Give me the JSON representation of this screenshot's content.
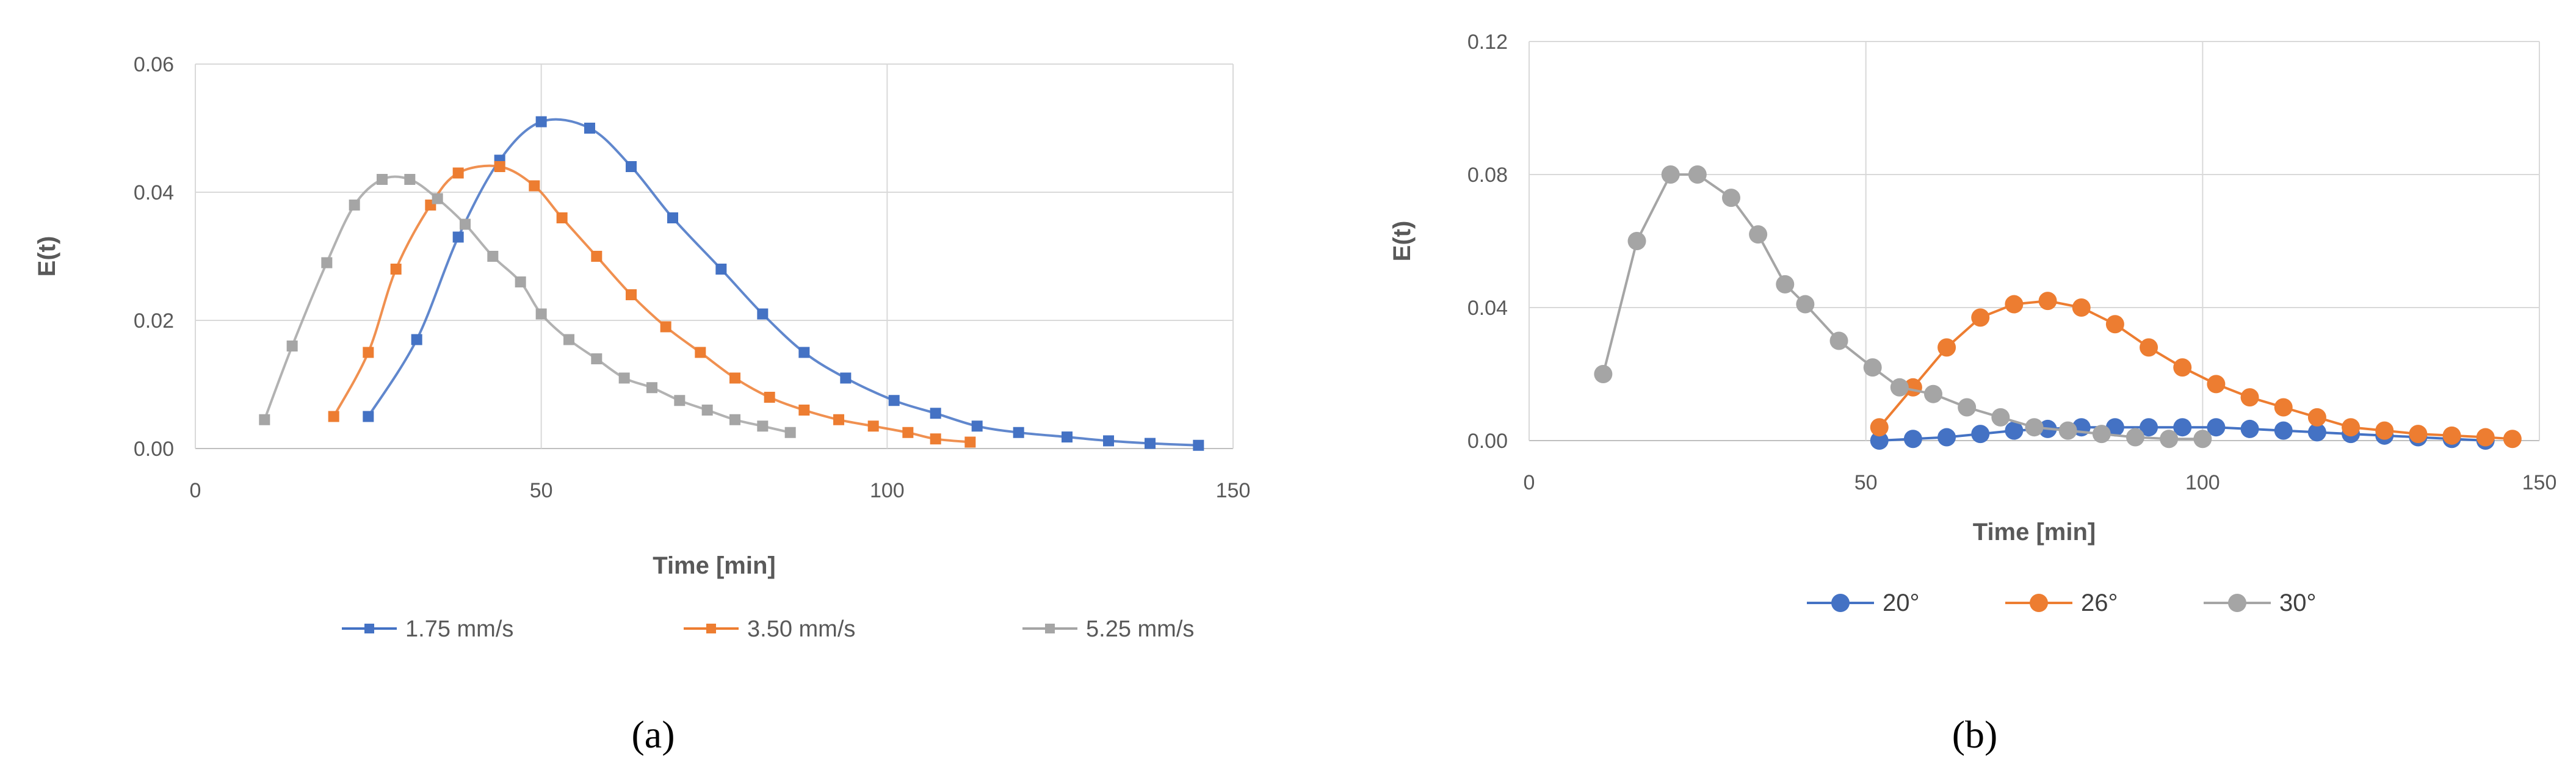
{
  "chart_data": [
    {
      "type": "line",
      "caption": "(a)",
      "xlabel": "Time [min]",
      "ylabel": "E(t)",
      "xlim": [
        0,
        150
      ],
      "ylim": [
        0,
        0.06
      ],
      "xticks": [
        "0",
        "50",
        "100",
        "150"
      ],
      "yticks": [
        "0.00",
        "0.02",
        "0.04",
        "0.06"
      ],
      "grid": true,
      "smooth": true,
      "legend_position": "bottom",
      "series": [
        {
          "name": "1.75 mm/s",
          "color": "#4472c4",
          "x": [
            25,
            32,
            38,
            44,
            50,
            57,
            63,
            69,
            76,
            82,
            88,
            94,
            101,
            107,
            113,
            119,
            126,
            132,
            138,
            145
          ],
          "y": [
            0.005,
            0.017,
            0.033,
            0.045,
            0.051,
            0.05,
            0.044,
            0.036,
            0.028,
            0.021,
            0.015,
            0.011,
            0.0075,
            0.0055,
            0.0035,
            0.0025,
            0.0018,
            0.0012,
            0.0008,
            0.0005
          ]
        },
        {
          "name": "3.50 mm/s",
          "color": "#ed7d31",
          "x": [
            20,
            25,
            29,
            34,
            38,
            44,
            49,
            53,
            58,
            63,
            68,
            73,
            78,
            83,
            88,
            93,
            98,
            103,
            107,
            112
          ],
          "y": [
            0.005,
            0.015,
            0.028,
            0.038,
            0.043,
            0.044,
            0.041,
            0.036,
            0.03,
            0.024,
            0.019,
            0.015,
            0.011,
            0.008,
            0.006,
            0.0045,
            0.0035,
            0.0025,
            0.0015,
            0.001
          ]
        },
        {
          "name": "5.25 mm/s",
          "color": "#a5a5a5",
          "x": [
            10,
            14,
            19,
            23,
            27,
            31,
            35,
            39,
            43,
            47,
            50,
            54,
            58,
            62,
            66,
            70,
            74,
            78,
            82,
            86
          ],
          "y": [
            0.0045,
            0.016,
            0.029,
            0.038,
            0.042,
            0.042,
            0.039,
            0.035,
            0.03,
            0.026,
            0.021,
            0.017,
            0.014,
            0.011,
            0.0095,
            0.0075,
            0.006,
            0.0045,
            0.0035,
            0.0025
          ]
        }
      ]
    },
    {
      "type": "line",
      "caption": "(b)",
      "xlabel": "Time [min]",
      "ylabel": "E(t)",
      "xlim": [
        0,
        150
      ],
      "ylim": [
        0,
        0.12
      ],
      "xticks": [
        "0",
        "50",
        "100",
        "150"
      ],
      "yticks": [
        "0.00",
        "0.04",
        "0.08",
        "0.12"
      ],
      "grid": true,
      "smooth": false,
      "legend_position": "bottom",
      "series": [
        {
          "name": "20°",
          "color": "#4472c4",
          "x": [
            52,
            57,
            62,
            67,
            72,
            77,
            82,
            87,
            92,
            97,
            102,
            107,
            112,
            117,
            122,
            127,
            132,
            137,
            142
          ],
          "y": [
            0.0,
            0.0005,
            0.001,
            0.002,
            0.003,
            0.0035,
            0.004,
            0.004,
            0.004,
            0.004,
            0.004,
            0.0035,
            0.003,
            0.0025,
            0.002,
            0.0015,
            0.001,
            0.0005,
            0.0
          ]
        },
        {
          "name": "26°",
          "color": "#ed7d31",
          "x": [
            52,
            57,
            62,
            67,
            72,
            77,
            82,
            87,
            92,
            97,
            102,
            107,
            112,
            117,
            122,
            127,
            132,
            137,
            142,
            146
          ],
          "y": [
            0.004,
            0.016,
            0.028,
            0.037,
            0.041,
            0.042,
            0.04,
            0.035,
            0.028,
            0.022,
            0.017,
            0.013,
            0.01,
            0.007,
            0.004,
            0.003,
            0.002,
            0.0015,
            0.001,
            0.0005
          ]
        },
        {
          "name": "30°",
          "color": "#a5a5a5",
          "x": [
            11,
            16,
            21,
            25,
            30,
            34,
            38,
            41,
            46,
            51,
            55,
            60,
            65,
            70,
            75,
            80,
            85,
            90,
            95,
            100
          ],
          "y": [
            0.02,
            0.06,
            0.08,
            0.08,
            0.073,
            0.062,
            0.047,
            0.041,
            0.03,
            0.022,
            0.016,
            0.014,
            0.01,
            0.007,
            0.004,
            0.003,
            0.002,
            0.001,
            0.0005,
            0.0005
          ]
        }
      ]
    }
  ]
}
